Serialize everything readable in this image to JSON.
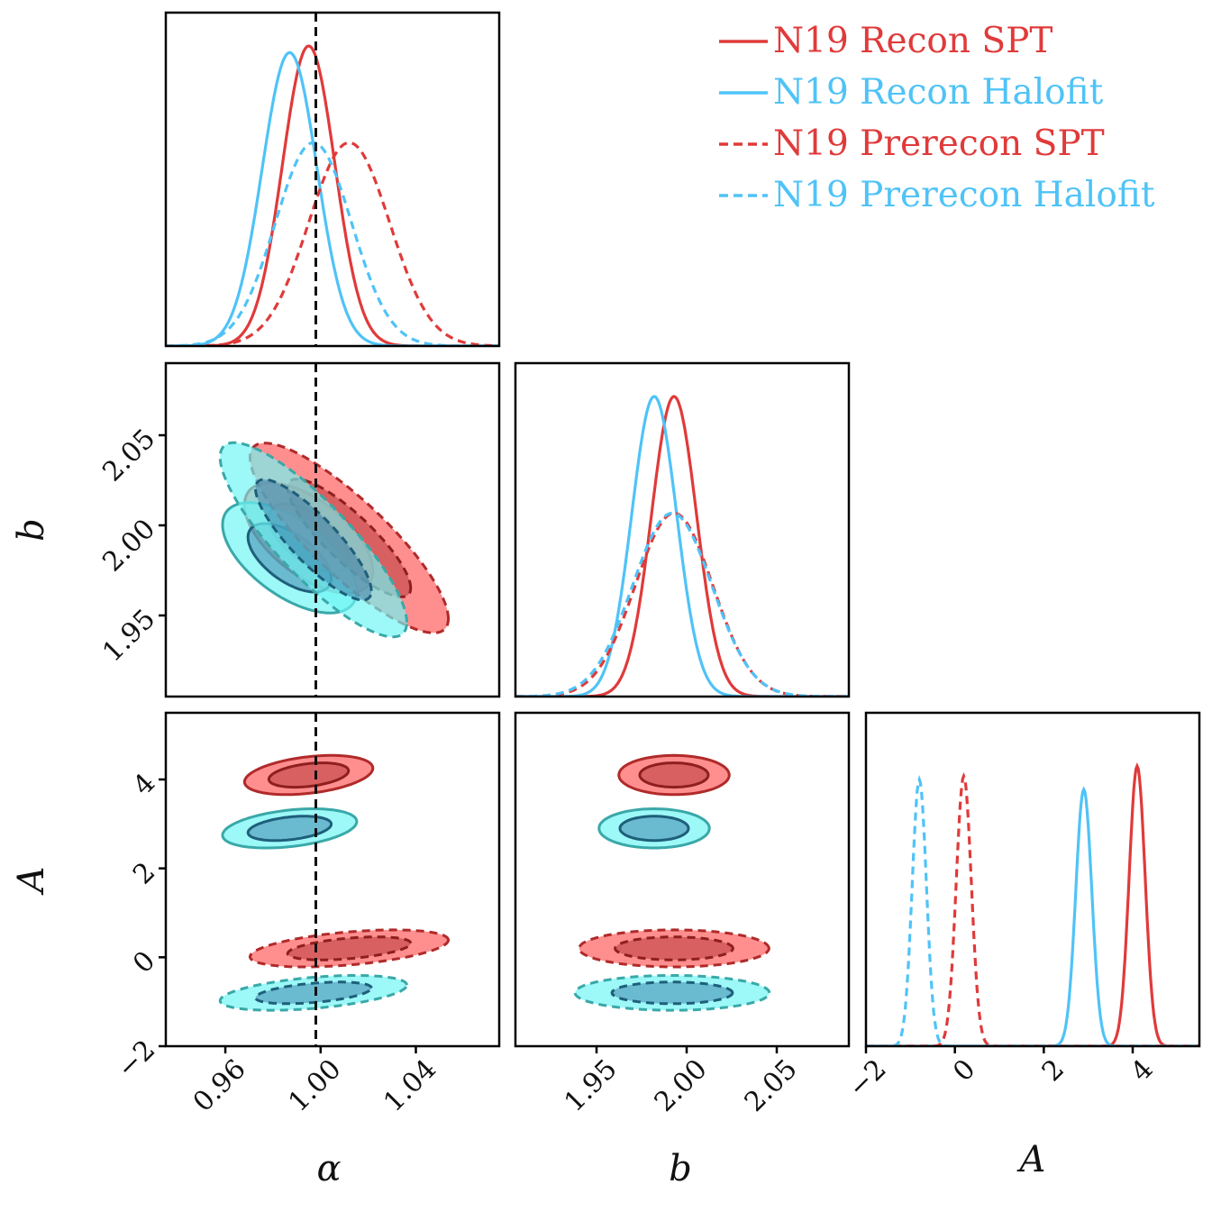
{
  "chart_data": {
    "type": "corner",
    "colors": {
      "spt": "#e03a3a",
      "halofit": "#4fc3f7",
      "spt_fill": "#ff5a5a",
      "halofit_fill": "#6ff5f5",
      "truth": "#111111"
    },
    "parameters": [
      {
        "key": "alpha",
        "label": "α",
        "range": [
          0.935,
          1.075
        ],
        "ticks": [
          0.96,
          1.0,
          1.04
        ],
        "tick_labels": [
          "0.96",
          "1.00",
          "1.04"
        ],
        "truth": 0.998
      },
      {
        "key": "b",
        "label": "b",
        "range": [
          1.905,
          2.09
        ],
        "ticks": [
          1.95,
          2.0,
          2.05
        ],
        "tick_labels": [
          "1.95",
          "2.00",
          "2.05"
        ]
      },
      {
        "key": "A",
        "label": "A",
        "range": [
          -2.0,
          5.5
        ],
        "ticks": [
          -2,
          0,
          2,
          4
        ],
        "tick_labels": [
          "−2",
          "0",
          "2",
          "4"
        ]
      }
    ],
    "legend": [
      {
        "label": "N19 Recon SPT",
        "color": "spt",
        "dashed": false
      },
      {
        "label": "N19 Recon Halofit",
        "color": "halofit",
        "dashed": false
      },
      {
        "label": "N19 Prerecon SPT",
        "color": "spt",
        "dashed": true
      },
      {
        "label": "N19 Prerecon Halofit",
        "color": "halofit",
        "dashed": true
      }
    ],
    "series": [
      {
        "name": "N19 Recon SPT",
        "color": "spt",
        "dashed": false,
        "mean": {
          "alpha": 0.995,
          "b": 1.993,
          "A": 4.1
        },
        "sigma": {
          "alpha": 0.011,
          "b": 0.0125,
          "A": 0.18
        },
        "peak": {
          "alpha": 0.9,
          "b": 0.9,
          "A": 0.84
        },
        "corr": {
          "alpha_b": -0.6,
          "alpha_A": 0.35,
          "b_A": 0.0
        }
      },
      {
        "name": "N19 Recon Halofit",
        "color": "halofit",
        "dashed": false,
        "mean": {
          "alpha": 0.987,
          "b": 1.982,
          "A": 2.9
        },
        "sigma": {
          "alpha": 0.0115,
          "b": 0.0125,
          "A": 0.18
        },
        "peak": {
          "alpha": 0.88,
          "b": 0.9,
          "A": 0.77
        },
        "corr": {
          "alpha_b": -0.6,
          "alpha_A": 0.35,
          "b_A": 0.0
        }
      },
      {
        "name": "N19 Prerecon SPT",
        "color": "spt",
        "dashed": true,
        "mean": {
          "alpha": 1.012,
          "b": 1.993,
          "A": 0.2
        },
        "sigma": {
          "alpha": 0.017,
          "b": 0.0215,
          "A": 0.17
        },
        "peak": {
          "alpha": 0.61,
          "b": 0.55,
          "A": 0.81
        },
        "corr": {
          "alpha_b": -0.85,
          "alpha_A": 0.45,
          "b_A": 0.0
        }
      },
      {
        "name": "N19 Prerecon Halofit",
        "color": "halofit",
        "dashed": true,
        "mean": {
          "alpha": 0.997,
          "b": 1.992,
          "A": -0.8
        },
        "sigma": {
          "alpha": 0.016,
          "b": 0.022,
          "A": 0.16
        },
        "peak": {
          "alpha": 0.61,
          "b": 0.55,
          "A": 0.8
        },
        "corr": {
          "alpha_b": -0.85,
          "alpha_A": 0.45,
          "b_A": 0.0
        }
      }
    ]
  }
}
